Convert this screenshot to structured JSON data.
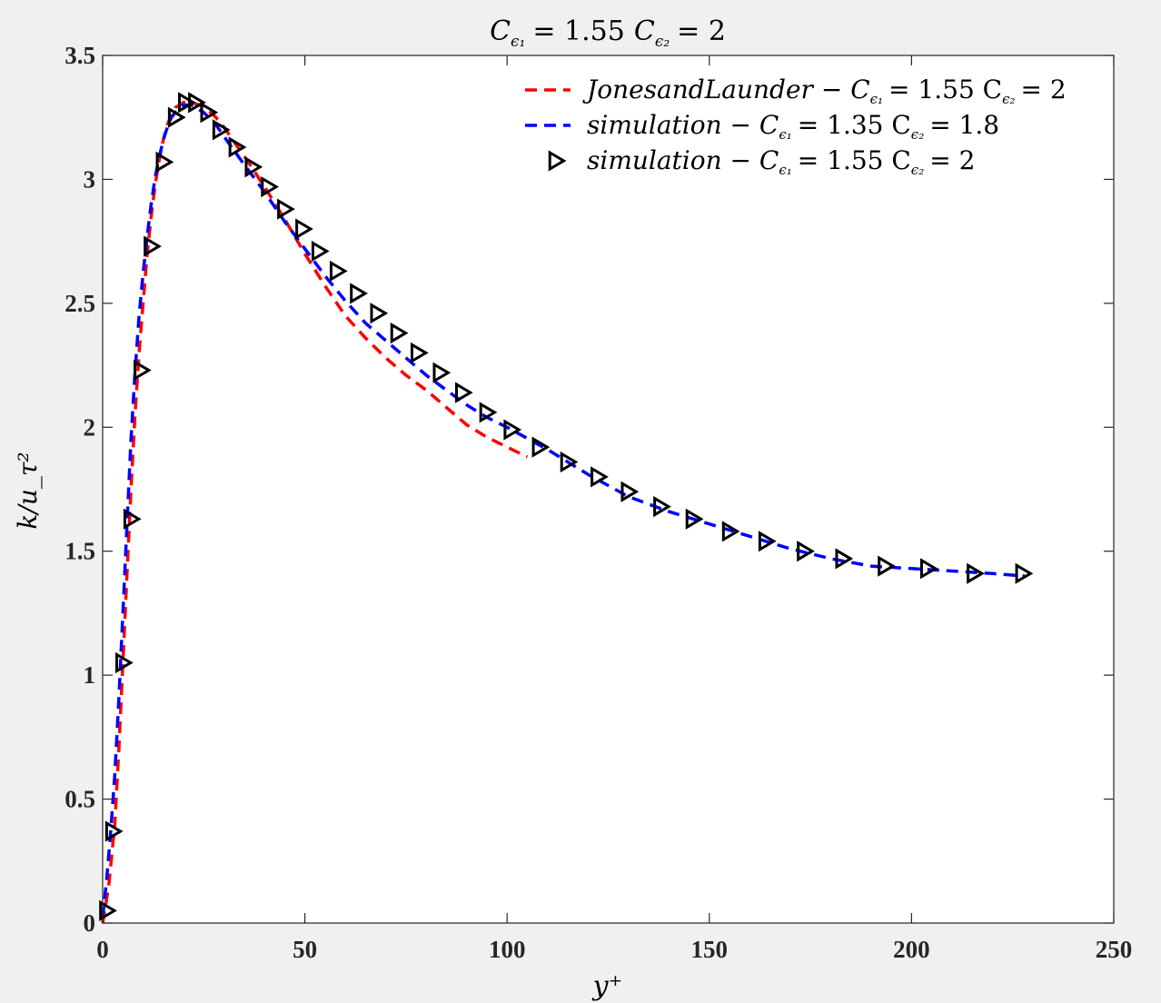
{
  "chart_data": {
    "type": "line",
    "title": "C_{ε1} = 1.55 C_{ε2} = 2",
    "title_parts": {
      "c": "C",
      "sub1": "ϵ₁",
      "eq1": "= 1.55",
      "sub2": "ϵ₂",
      "eq2": "= 2"
    },
    "xlabel": "y⁺",
    "ylabel": "k/u_τ²",
    "xlim": [
      0,
      250
    ],
    "ylim": [
      0,
      3.5
    ],
    "xticks": [
      0,
      50,
      100,
      150,
      200,
      250
    ],
    "yticks": [
      0,
      0.5,
      1,
      1.5,
      2,
      2.5,
      3,
      3.5
    ],
    "xtick_labels": [
      "0",
      "50",
      "100",
      "150",
      "200",
      "250"
    ],
    "ytick_labels": [
      "0",
      "0.5",
      "1",
      "1.5",
      "2",
      "2.5",
      "3",
      "3.5"
    ],
    "grid": false,
    "legend_position": "top-right",
    "series": [
      {
        "name": "JonesandLaunder − C_{ε1} = 1.55 C_{ε2} = 2",
        "legend_parts": {
          "prefix": "JonesandLaunder − C",
          "sub1": "ϵ₁",
          "eq1": "= 1.55 C",
          "sub2": "ϵ₂",
          "eq2": "= 2"
        },
        "style": "dashed",
        "color": "#ff0000",
        "x": [
          0,
          1.5,
          3,
          4,
          5,
          6,
          7,
          8,
          9,
          10,
          11,
          12,
          13,
          14,
          15,
          16,
          17,
          18,
          19,
          20,
          22,
          24,
          26,
          28,
          30,
          33,
          36,
          40,
          45,
          50,
          55,
          60,
          65,
          70,
          75,
          80,
          85,
          90,
          95,
          100,
          105
        ],
        "y": [
          0,
          0.15,
          0.4,
          0.7,
          1.05,
          1.4,
          1.75,
          2.05,
          2.3,
          2.5,
          2.7,
          2.85,
          2.98,
          3.08,
          3.16,
          3.22,
          3.26,
          3.29,
          3.3,
          3.31,
          3.31,
          3.3,
          3.28,
          3.25,
          3.21,
          3.14,
          3.07,
          2.97,
          2.84,
          2.7,
          2.57,
          2.45,
          2.36,
          2.28,
          2.21,
          2.15,
          2.08,
          2.01,
          1.96,
          1.92,
          1.88
        ]
      },
      {
        "name": "simulation − C_{ε1} = 1.35 C_{ε2} = 1.8",
        "legend_parts": {
          "prefix": "simulation − C",
          "sub1": "ϵ₁",
          "eq1": "= 1.35 C",
          "sub2": "ϵ₂",
          "eq2": "= 1.8"
        },
        "style": "dashed",
        "color": "#0000ff",
        "x": [
          0,
          1,
          2,
          3,
          4,
          5,
          6,
          7,
          8,
          9,
          10,
          11,
          12,
          13,
          14,
          15,
          16,
          17,
          18,
          20,
          22,
          25,
          28,
          31,
          35,
          40,
          45,
          50,
          55,
          60,
          65,
          70,
          75,
          80,
          85,
          90,
          95,
          100,
          110,
          120,
          130,
          140,
          150,
          160,
          170,
          180,
          190,
          200,
          210,
          220,
          228
        ],
        "y": [
          0.02,
          0.18,
          0.37,
          0.6,
          0.9,
          1.25,
          1.6,
          1.95,
          2.22,
          2.45,
          2.62,
          2.77,
          2.9,
          3.01,
          3.09,
          3.16,
          3.21,
          3.25,
          3.27,
          3.3,
          3.3,
          3.27,
          3.22,
          3.15,
          3.06,
          2.95,
          2.83,
          2.72,
          2.61,
          2.51,
          2.42,
          2.35,
          2.28,
          2.21,
          2.15,
          2.09,
          2.04,
          2.0,
          1.91,
          1.81,
          1.72,
          1.66,
          1.61,
          1.56,
          1.51,
          1.47,
          1.44,
          1.43,
          1.42,
          1.41,
          1.4
        ]
      },
      {
        "name": "simulation − C_{ε1} = 1.55 C_{ε2} = 2",
        "legend_parts": {
          "prefix": "simulation − C",
          "sub1": "ϵ₁",
          "eq1": "= 1.55 C",
          "sub2": "ϵ₂",
          "eq2": "= 2"
        },
        "style": "markers",
        "marker": "triangle-right",
        "color": "#000000",
        "x": [
          1,
          2.5,
          5,
          7,
          9.5,
          12,
          15,
          18,
          20.5,
          23,
          26,
          29,
          33,
          37,
          41,
          45,
          49.5,
          53.5,
          58,
          63,
          68,
          73,
          78,
          83.5,
          89,
          95,
          101,
          108,
          115,
          122.5,
          130,
          138,
          146,
          155,
          164,
          173.5,
          183,
          193.5,
          204,
          215.5,
          227.5
        ],
        "y": [
          0.05,
          0.37,
          1.05,
          1.63,
          2.23,
          2.73,
          3.07,
          3.25,
          3.31,
          3.31,
          3.27,
          3.2,
          3.13,
          3.05,
          2.97,
          2.88,
          2.8,
          2.71,
          2.63,
          2.54,
          2.46,
          2.38,
          2.3,
          2.22,
          2.14,
          2.06,
          1.99,
          1.92,
          1.86,
          1.8,
          1.74,
          1.68,
          1.63,
          1.58,
          1.54,
          1.5,
          1.47,
          1.44,
          1.43,
          1.41,
          1.41
        ]
      }
    ]
  }
}
